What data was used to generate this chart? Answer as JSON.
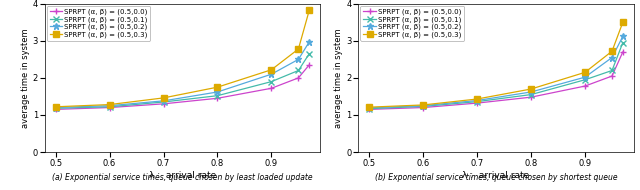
{
  "subplot_a": {
    "caption": "(a) Exponential service times, queue chosen by least loaded update",
    "lambda": [
      0.5,
      0.6,
      0.7,
      0.8,
      0.9,
      0.95,
      0.97
    ],
    "series": [
      {
        "label": "SPRPT (α, β) = (0.5,0.0)",
        "color": "#cc44cc",
        "marker": "+",
        "values": [
          1.15,
          1.2,
          1.3,
          1.45,
          1.72,
          2.0,
          2.35
        ]
      },
      {
        "label": "SPRPT (α, β) = (0.5,0.1)",
        "color": "#44bbaa",
        "marker": "x",
        "values": [
          1.18,
          1.22,
          1.35,
          1.52,
          1.9,
          2.2,
          2.65
        ]
      },
      {
        "label": "SPRPT (α, β) = (0.5,0.2)",
        "color": "#55aadd",
        "marker": "*",
        "values": [
          1.2,
          1.25,
          1.38,
          1.62,
          2.1,
          2.5,
          2.97
        ]
      },
      {
        "label": "SPRPT (α, β) = (0.5,0.3)",
        "color": "#ddaa00",
        "marker": "s",
        "values": [
          1.22,
          1.28,
          1.46,
          1.75,
          2.22,
          2.78,
          3.82
        ]
      }
    ],
    "xlim": [
      0.48,
      0.99
    ],
    "ylim": [
      0,
      4
    ],
    "xticks": [
      0.5,
      0.6,
      0.7,
      0.8,
      0.9
    ],
    "yticks": [
      0,
      1,
      2,
      3,
      4
    ],
    "xlabel": "λ :  arrival rate",
    "ylabel": "average time in system"
  },
  "subplot_b": {
    "caption": "(b) Exponential service times, queue chosen by shortest queue",
    "lambda": [
      0.5,
      0.6,
      0.7,
      0.8,
      0.9,
      0.95,
      0.97
    ],
    "series": [
      {
        "label": "SPRPT (α, β) = (0.5,0.0)",
        "color": "#cc44cc",
        "marker": "+",
        "values": [
          1.15,
          1.2,
          1.32,
          1.48,
          1.78,
          2.05,
          2.7
        ]
      },
      {
        "label": "SPRPT (α, β) = (0.5,0.1)",
        "color": "#44bbaa",
        "marker": "x",
        "values": [
          1.17,
          1.23,
          1.36,
          1.55,
          1.95,
          2.2,
          2.95
        ]
      },
      {
        "label": "SPRPT (α, β) = (0.5,0.2)",
        "color": "#55aadd",
        "marker": "*",
        "values": [
          1.19,
          1.25,
          1.39,
          1.62,
          2.02,
          2.55,
          3.12
        ]
      },
      {
        "label": "SPRPT (α, β) = (0.5,0.3)",
        "color": "#ddaa00",
        "marker": "s",
        "values": [
          1.21,
          1.27,
          1.43,
          1.7,
          2.15,
          2.72,
          3.5
        ]
      }
    ],
    "xlim": [
      0.48,
      0.99
    ],
    "ylim": [
      0,
      4
    ],
    "xticks": [
      0.5,
      0.6,
      0.7,
      0.8,
      0.9
    ],
    "yticks": [
      0,
      1,
      2,
      3,
      4
    ],
    "xlabel": "λ :  arrival rate",
    "ylabel": "average time in system"
  },
  "figsize": [
    6.4,
    1.9
  ],
  "dpi": 100
}
